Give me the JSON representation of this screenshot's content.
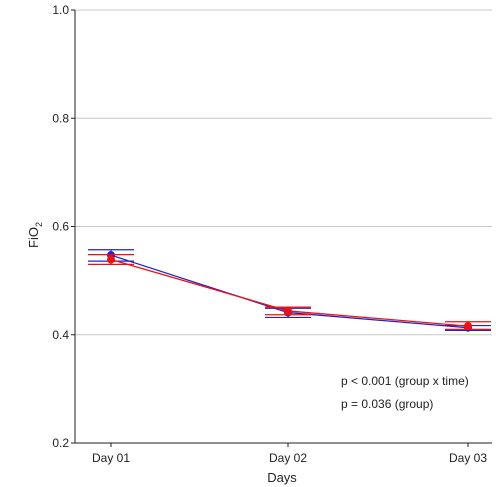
{
  "chart_data": {
    "type": "line",
    "title": "",
    "xlabel": "Days",
    "ylabel_main": "FiO",
    "ylabel_sub": "2",
    "categories": [
      "Day 01",
      "Day 02",
      "Day 03"
    ],
    "ylim": [
      0.2,
      1.0
    ],
    "yticks": [
      "0.2",
      "0.4",
      "0.6",
      "0.8",
      "1.0"
    ],
    "ytick_values": [
      0.2,
      0.4,
      0.6,
      0.8,
      1.0
    ],
    "grid": "horizontal",
    "legend": "none",
    "series": [
      {
        "color": "#2222cc",
        "values": [
          0.547,
          0.441,
          0.413
        ],
        "err_low": [
          0.536,
          0.432,
          0.408
        ],
        "err_high": [
          0.557,
          0.449,
          0.417
        ]
      },
      {
        "color": "#ee1111",
        "values": [
          0.539,
          0.444,
          0.416
        ],
        "err_low": [
          0.53,
          0.437,
          0.41
        ],
        "err_high": [
          0.548,
          0.451,
          0.424
        ]
      }
    ],
    "annotations": [
      "p < 0.001 (group x time)",
      "p = 0.036 (group)"
    ]
  }
}
